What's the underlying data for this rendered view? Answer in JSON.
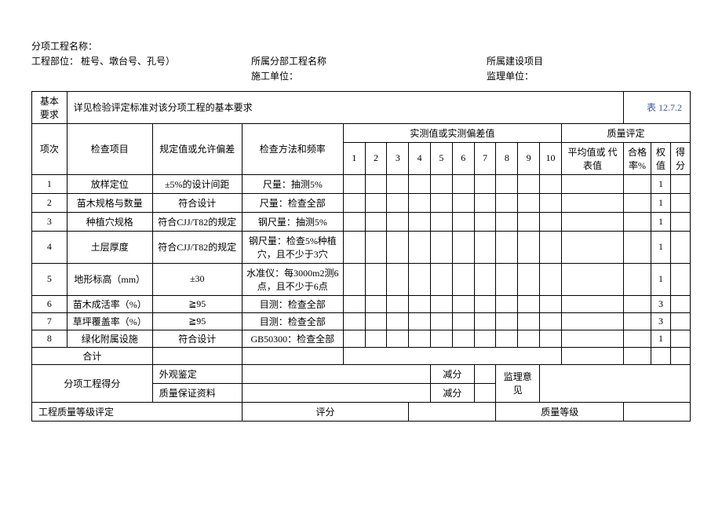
{
  "header": {
    "project_name_label": "分项工程名称：",
    "position_label": "工程部位：   桩号、墩台号、孔号）",
    "subsection_label": "所属分部工程名称",
    "construction_unit_label": "施工单位：",
    "owner_label": "所属建设项目",
    "supervisor_label": "监理单位："
  },
  "basic_req": {
    "label": "基本 要求",
    "content": "详见检验评定标准对该分项工程的基本要求",
    "table_number": "表  12.7.2"
  },
  "columns": {
    "item_no": "项次",
    "check_item": "检查项目",
    "spec_value": "规定值或允许偏差",
    "check_method": "检查方法和频率",
    "measured_header": "实测值或实测偏差值",
    "quality_header": "质量评定",
    "nums": [
      "1",
      "2",
      "3",
      "4",
      "5",
      "6",
      "7",
      "8",
      "9",
      "10"
    ],
    "avg_value": "平均值或 代表值",
    "pass_rate": "合格率%",
    "weight": "权值",
    "score": "得分"
  },
  "rows": [
    {
      "no": "1",
      "item": "放样定位",
      "spec": "±5%的设计间距",
      "method": "尺量：抽测5%",
      "weight": "1"
    },
    {
      "no": "2",
      "item": "苗木规格与数量",
      "spec": "符合设计",
      "method": "尺量：检查全部",
      "weight": "1"
    },
    {
      "no": "3",
      "item": "种植穴规格",
      "spec": "符合CJJ/T82的规定",
      "method": "钢尺量：抽测5%",
      "weight": "1"
    },
    {
      "no": "4",
      "item": "土层厚度",
      "spec": "符合CJJ/T82的规定",
      "method": "钢尺量：检查5%种植穴，且不少于3穴",
      "weight": "1"
    },
    {
      "no": "5",
      "item": "地形标高（mm）",
      "spec": "±30",
      "method": "水准仪：每3000m2测6点，且不少于6点",
      "weight": "1"
    },
    {
      "no": "6",
      "item": "苗木成活率（%）",
      "spec": "≧95",
      "method": "目测：检查全部",
      "weight": "3"
    },
    {
      "no": "7",
      "item": "草坪覆盖率（%）",
      "spec": "≧95",
      "method": "目测：检查全部",
      "weight": "3"
    },
    {
      "no": "8",
      "item": "绿化附属设施",
      "spec": "符合设计",
      "method": "GB50300：检查全部",
      "weight": "1"
    }
  ],
  "footer": {
    "total": "合计",
    "subsection_score": "分项工程得分",
    "appearance": "外观鉴定",
    "quality_docs": "质量保证资料",
    "deduct": "减分",
    "supervisor_opinion": "监理意见",
    "quality_level_eval": "工程质量等级评定",
    "score_label": "评分",
    "quality_level": "质量等级"
  }
}
